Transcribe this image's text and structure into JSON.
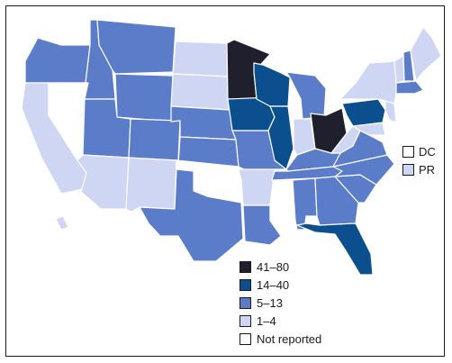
{
  "colors": {
    "c1": "#1f1f2e",
    "c2": "#0b4f8f",
    "c3": "#5b7cc8",
    "c4": "#cfd6f3",
    "c5": "#ffffff",
    "border": "#1a1a1a"
  },
  "legend": [
    {
      "label": "41–80",
      "color_key": "c1"
    },
    {
      "label": "14–40",
      "color_key": "c2"
    },
    {
      "label": "5–13",
      "color_key": "c3"
    },
    {
      "label": "1–4",
      "color_key": "c4"
    },
    {
      "label": "Not reported",
      "color_key": "c5"
    }
  ],
  "territories": [
    {
      "abbr": "DC",
      "color_key": "c5"
    },
    {
      "abbr": "PR",
      "color_key": "c4"
    }
  ],
  "state_categories": {
    "WA": "c5",
    "OR": "c3",
    "CA": "c4",
    "NV": "c5",
    "ID": "c3",
    "MT": "c3",
    "WY": "c3",
    "UT": "c3",
    "AZ": "c4",
    "NM": "c4",
    "CO": "c3",
    "ND": "c4",
    "SD": "c4",
    "NE": "c3",
    "KS": "c3",
    "OK": "c5",
    "TX": "c3",
    "MN": "c1",
    "IA": "c2",
    "MO": "c3",
    "AR": "c4",
    "LA": "c3",
    "WI": "c2",
    "IL": "c2",
    "MS": "c5",
    "MI": "c3",
    "IN": "c4",
    "KY": "c3",
    "TN": "c3",
    "AL": "c3",
    "OH": "c1",
    "WV": "c4",
    "VA": "c3",
    "NC": "c3",
    "SC": "c3",
    "GA": "c3",
    "FL": "c2",
    "PA": "c2",
    "NY": "c4",
    "VT": "c4",
    "NH": "c3",
    "ME": "c4",
    "MA": "c3",
    "RI": "c5",
    "CT": "c5",
    "NJ": "c4",
    "DE": "c5",
    "MD": "c4",
    "AK": "c5",
    "HI": "c4"
  }
}
